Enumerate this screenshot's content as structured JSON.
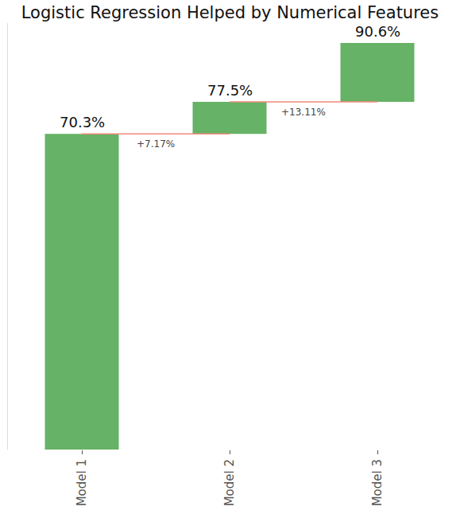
{
  "chart_data": {
    "type": "waterfall",
    "title": "Logistic Regression Helped by Numerical Features",
    "categories": [
      "Model 1",
      "Model 2",
      "Model 3"
    ],
    "values": [
      70.3,
      7.17,
      13.11
    ],
    "value_labels": [
      "70.3%",
      "+7.17%",
      "+13.11%"
    ],
    "data_labels": true,
    "annotations": [
      {
        "x": "Model 2",
        "text": "77.5%"
      },
      {
        "x": "Model 3",
        "text": "90.6%"
      }
    ],
    "color": "#66b266",
    "ylim": [
      0,
      95
    ],
    "yticks": [],
    "tick_labels": "x",
    "grid": false
  }
}
